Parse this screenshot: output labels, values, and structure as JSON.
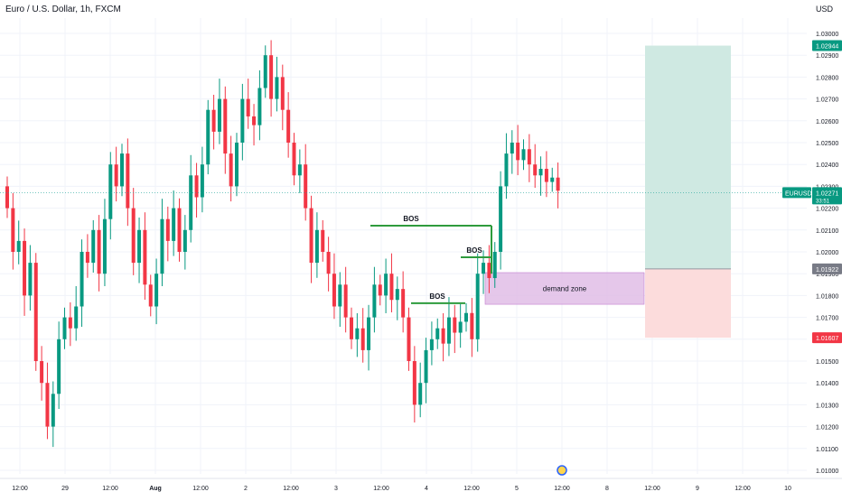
{
  "header": {
    "symbol_title": "Euro / U.S. Dollar, 1h, FXCM",
    "currency": "USD"
  },
  "colors": {
    "up": "#089981",
    "down": "#f23645",
    "bos_line": "#2e9b3d",
    "demand_fill": "#e1bee7",
    "profit_fill": "#cfe9e2",
    "loss_fill": "#fcdcdc",
    "grid": "#f0f3fa",
    "price_line": "#26a69a"
  },
  "chart_data": {
    "type": "candlestick",
    "x_ticks": [
      "12:00",
      "29",
      "12:00",
      "Aug",
      "12:00",
      "2",
      "12:00",
      "3",
      "12:00",
      "4",
      "12:00",
      "5",
      "12:00",
      "8",
      "12:00",
      "9",
      "12:00",
      "10"
    ],
    "y_ticks": [
      "1.03000",
      "1.02900",
      "1.02800",
      "1.02700",
      "1.02600",
      "1.02500",
      "1.02400",
      "1.02300",
      "1.02200",
      "1.02100",
      "1.02000",
      "1.01900",
      "1.01800",
      "1.01700",
      "1.01600",
      "1.01500",
      "1.01400",
      "1.01300",
      "1.01200",
      "1.01100",
      "1.01000"
    ],
    "y_range": [
      1.0095,
      1.0312
    ],
    "series_close": [
      1.022,
      1.02,
      1.0205,
      1.018,
      1.0195,
      1.015,
      1.014,
      1.012,
      1.0135,
      1.016,
      1.017,
      1.0165,
      1.0175,
      1.02,
      1.0195,
      1.021,
      1.019,
      1.0215,
      1.024,
      1.023,
      1.0245,
      1.022,
      1.0195,
      1.021,
      1.0185,
      1.0175,
      1.019,
      1.0215,
      1.0205,
      1.022,
      1.02,
      1.021,
      1.0235,
      1.0225,
      1.024,
      1.0265,
      1.0255,
      1.027,
      1.0245,
      1.023,
      1.025,
      1.027,
      1.0262,
      1.0258,
      1.0275,
      1.029,
      1.027,
      1.028,
      1.0265,
      1.025,
      1.0235,
      1.024,
      1.022,
      1.0195,
      1.021,
      1.02,
      1.019,
      1.0175,
      1.0185,
      1.017,
      1.016,
      1.0165,
      1.0155,
      1.017,
      1.0185,
      1.018,
      1.019,
      1.0178,
      1.0183,
      1.017,
      1.015,
      1.013,
      1.014,
      1.0155,
      1.016,
      1.0165,
      1.0158,
      1.017,
      1.0163,
      1.0168,
      1.0172,
      1.016,
      1.019,
      1.0195,
      1.0188,
      1.02,
      1.023,
      1.0245,
      1.025,
      1.0242,
      1.0247,
      1.024,
      1.0235,
      1.0238,
      1.0232,
      1.0234,
      1.0228
    ],
    "last_price": "1.02271",
    "countdown": "33:51",
    "symbol_short": "EURUSD",
    "annotations": {
      "bos_labels": [
        "BOS",
        "BOS",
        "BOS"
      ],
      "demand_zone_label": "demand zone"
    },
    "position": {
      "target": "1.02944",
      "entry": "1.01922",
      "stop": "1.01607"
    }
  }
}
